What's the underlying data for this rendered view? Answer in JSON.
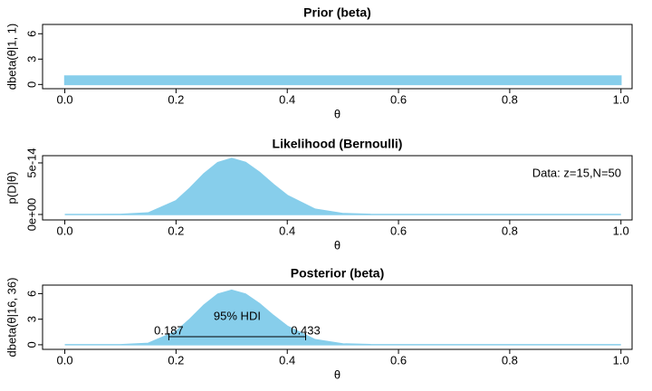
{
  "chart_data": [
    {
      "type": "area",
      "title": "Prior (beta)",
      "xlabel": "θ",
      "ylabel": "dbeta(θ|1, 1)",
      "x": [
        0,
        1
      ],
      "values": [
        1,
        1
      ],
      "color": "#87ceeb",
      "xlim": [
        -0.04,
        1.02
      ],
      "ylim": [
        -0.5,
        7.1
      ],
      "xticks": [
        {
          "value": 0,
          "label": "0.0"
        },
        0.2,
        0.4,
        0.6,
        0.8,
        {
          "value": 1,
          "label": "1.0"
        }
      ],
      "yticks": [
        0,
        3,
        6
      ]
    },
    {
      "type": "area",
      "title": "Likelihood (Bernoulli)",
      "xlabel": "θ",
      "ylabel": "p(D|θ)",
      "annotation": "Data: z=15,N=50",
      "x": [
        0,
        0.05,
        0.1,
        0.15,
        0.2,
        0.225,
        0.25,
        0.275,
        0.3,
        0.325,
        0.35,
        0.375,
        0.4,
        0.45,
        0.5,
        0.55,
        0.6,
        0.7,
        0.8,
        0.9,
        1
      ],
      "values": [
        0,
        5e-21,
        2.5e-17,
        1.48e-15,
        1.33e-14,
        2.56e-14,
        3.94e-14,
        5.03e-14,
        5.43e-14,
        5.05e-14,
        4.09e-14,
        2.92e-14,
        1.85e-14,
        5.13e-15,
        8.9e-16,
        9.2e-17,
        5e-18,
        0,
        0,
        0,
        0
      ],
      "color": "#87ceeb",
      "xlim": [
        -0.04,
        1.02
      ],
      "ylim": [
        -5.3e-15,
        5.7e-14
      ],
      "xticks": [
        {
          "value": 0,
          "label": "0.0"
        },
        0.2,
        0.4,
        0.6,
        0.8,
        {
          "value": 1,
          "label": "1.0"
        }
      ],
      "yticks": [
        {
          "value": 0,
          "label": "0e+00"
        },
        {
          "value": 5e-14,
          "label": "5e-14"
        }
      ]
    },
    {
      "type": "area",
      "title": "Posterior (beta)",
      "xlabel": "θ",
      "ylabel": "dbeta(θ|16, 36)",
      "x": [
        0,
        0.05,
        0.1,
        0.15,
        0.2,
        0.225,
        0.25,
        0.275,
        0.3,
        0.325,
        0.35,
        0.375,
        0.4,
        0.45,
        0.5,
        0.55,
        0.6,
        0.7,
        0.8,
        0.9,
        1
      ],
      "values": [
        0,
        0,
        0.003,
        0.17,
        1.57,
        3.01,
        4.65,
        5.93,
        6.4,
        5.95,
        4.83,
        3.44,
        2.18,
        0.6,
        0.1,
        0.011,
        0.0007,
        0,
        0,
        0,
        0
      ],
      "color": "#87ceeb",
      "xlim": [
        -0.04,
        1.02
      ],
      "ylim": [
        -0.54,
        7.0
      ],
      "xticks": [
        {
          "value": 0,
          "label": "0.0"
        },
        0.2,
        0.4,
        0.6,
        0.8,
        {
          "value": 1,
          "label": "1.0"
        }
      ],
      "yticks": [
        0,
        3,
        6
      ],
      "hdi": {
        "label": "95% HDI",
        "low": 0.187,
        "high": 0.433,
        "height": 0.95
      }
    }
  ]
}
